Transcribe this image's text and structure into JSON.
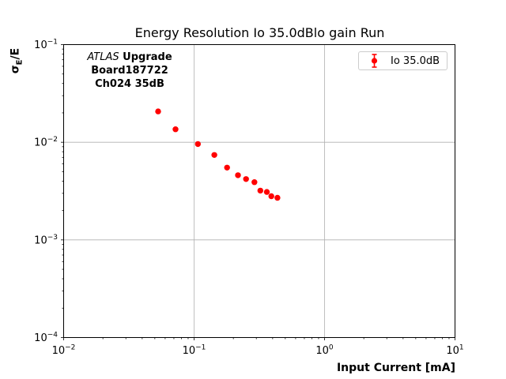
{
  "title": "Energy Resolution Io 35.0dBlo gain Run",
  "axes": {
    "xlabel": "Input Current [mA]",
    "ylabel": {
      "base": "σ",
      "sub": "E",
      "rest": "/E"
    }
  },
  "annotation": {
    "experiment": "ATLAS",
    "line1_rest": "Upgrade",
    "line2": "Board187722",
    "line3": "Ch024 35dB"
  },
  "legend": {
    "items": [
      {
        "label": "Io 35.0dB",
        "color": "#ff0000",
        "marker": "errorbar-point"
      }
    ]
  },
  "colors": {
    "marker": "#ff0000",
    "grid": "#b0b0b0",
    "axis": "#000000",
    "legend_border": "#cccccc",
    "background": "#ffffff"
  },
  "chart_data": {
    "type": "scatter",
    "title": "Energy Resolution Io 35.0dBlo gain Run",
    "xlabel": "Input Current [mA]",
    "ylabel": "σ_E/E",
    "xscale": "log",
    "yscale": "log",
    "xlim": [
      0.01,
      10
    ],
    "ylim": [
      0.0001,
      0.1
    ],
    "xtick_exponents": [
      -2,
      -1,
      0,
      1
    ],
    "ytick_exponents": [
      -1,
      -2,
      -3,
      -4
    ],
    "grid": true,
    "legend_position": "upper right",
    "series": [
      {
        "name": "Io 35.0dB",
        "color": "#ff0000",
        "marker": "circle",
        "x": [
          0.053,
          0.072,
          0.107,
          0.143,
          0.179,
          0.217,
          0.25,
          0.29,
          0.322,
          0.361,
          0.391,
          0.435
        ],
        "y": [
          0.0207,
          0.0136,
          0.0096,
          0.0074,
          0.0055,
          0.0046,
          0.0042,
          0.0039,
          0.0032,
          0.0031,
          0.0028,
          0.0027
        ]
      }
    ]
  }
}
